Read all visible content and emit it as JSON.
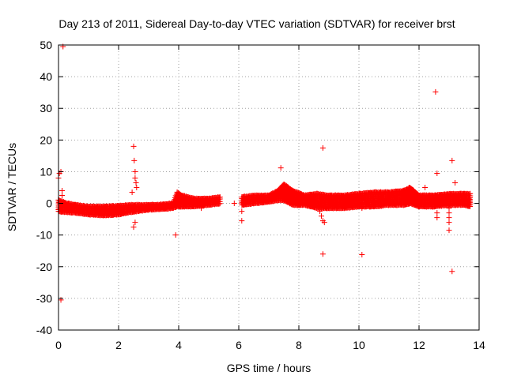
{
  "chart_data": {
    "type": "scatter",
    "title": "Day 213 of 2011, Sidereal Day-to-day VTEC variation (SDTVAR) for receiver brst",
    "xlabel": "GPS time / hours",
    "ylabel": "SDTVAR / TECUs",
    "xlim": [
      0,
      14
    ],
    "ylim": [
      -40,
      50
    ],
    "xticks": [
      0,
      2,
      4,
      6,
      8,
      10,
      12,
      14
    ],
    "yticks": [
      -40,
      -30,
      -20,
      -10,
      0,
      10,
      20,
      30,
      40,
      50
    ],
    "grid": true,
    "marker": "+",
    "color": "#ff0000",
    "band": {
      "description": "dense cluster of points",
      "x": [
        0.0,
        0.3,
        0.6,
        1.0,
        1.5,
        2.0,
        2.4,
        2.6,
        3.0,
        3.5,
        3.8,
        3.95,
        4.1,
        4.5,
        5.0,
        5.4,
        6.1,
        6.5,
        7.0,
        7.3,
        7.5,
        7.8,
        8.2,
        8.6,
        9.0,
        9.5,
        10.0,
        10.5,
        11.0,
        11.5,
        11.7,
        12.0,
        12.5,
        13.0,
        13.5,
        13.7
      ],
      "upper": [
        1.0,
        0.0,
        -0.5,
        -1.0,
        -1.0,
        -0.8,
        -0.5,
        -0.5,
        -0.5,
        -0.3,
        0.0,
        3.5,
        2.5,
        1.5,
        1.5,
        2.0,
        2.0,
        2.5,
        2.5,
        4.0,
        6.0,
        4.0,
        2.5,
        3.0,
        2.5,
        2.5,
        3.0,
        3.5,
        3.5,
        4.0,
        5.0,
        2.5,
        2.5,
        3.0,
        3.0,
        3.0
      ],
      "lower": [
        -2.5,
        -2.8,
        -3.0,
        -3.5,
        -3.8,
        -3.5,
        -2.8,
        -2.5,
        -2.0,
        -1.8,
        -1.5,
        -1.0,
        -1.0,
        -1.0,
        -0.5,
        0.0,
        -0.5,
        0.0,
        0.5,
        1.0,
        1.0,
        -0.5,
        -0.5,
        -1.5,
        -1.5,
        -1.5,
        -1.0,
        -1.0,
        -0.5,
        -0.5,
        0.0,
        -1.0,
        -1.0,
        -0.5,
        -0.5,
        -1.0
      ]
    },
    "gap": [
      5.4,
      6.1
    ],
    "points": [
      {
        "x": 0.15,
        "y": 49.5
      },
      {
        "x": 0.03,
        "y": 9.5
      },
      {
        "x": 0.08,
        "y": 10.0
      },
      {
        "x": 0.0,
        "y": 8.0
      },
      {
        "x": 0.12,
        "y": 4.0
      },
      {
        "x": 0.12,
        "y": 2.5
      },
      {
        "x": 0.08,
        "y": -30.5
      },
      {
        "x": 2.5,
        "y": 18.0
      },
      {
        "x": 2.52,
        "y": 13.5
      },
      {
        "x": 2.55,
        "y": 10.0
      },
      {
        "x": 2.55,
        "y": 8.0
      },
      {
        "x": 2.58,
        "y": 6.5
      },
      {
        "x": 2.6,
        "y": 5.0
      },
      {
        "x": 2.45,
        "y": 3.5
      },
      {
        "x": 2.55,
        "y": -6.0
      },
      {
        "x": 2.5,
        "y": -7.5
      },
      {
        "x": 3.9,
        "y": -10.0
      },
      {
        "x": 4.0,
        "y": 1.0
      },
      {
        "x": 4.75,
        "y": -1.5
      },
      {
        "x": 5.85,
        "y": 0.0
      },
      {
        "x": 6.1,
        "y": -2.5
      },
      {
        "x": 6.1,
        "y": -5.5
      },
      {
        "x": 7.4,
        "y": 11.2
      },
      {
        "x": 8.8,
        "y": 17.5
      },
      {
        "x": 8.7,
        "y": -2.5
      },
      {
        "x": 8.75,
        "y": -4.0
      },
      {
        "x": 8.8,
        "y": -5.5
      },
      {
        "x": 8.85,
        "y": -6.0
      },
      {
        "x": 8.8,
        "y": -16.0
      },
      {
        "x": 10.1,
        "y": -16.2
      },
      {
        "x": 10.1,
        "y": -1.5
      },
      {
        "x": 12.2,
        "y": 5.0
      },
      {
        "x": 12.55,
        "y": 35.2
      },
      {
        "x": 12.6,
        "y": 9.5
      },
      {
        "x": 12.6,
        "y": -3.0
      },
      {
        "x": 12.6,
        "y": -4.5
      },
      {
        "x": 13.0,
        "y": -1.5
      },
      {
        "x": 13.0,
        "y": -3.0
      },
      {
        "x": 13.0,
        "y": -4.5
      },
      {
        "x": 13.0,
        "y": -6.0
      },
      {
        "x": 13.0,
        "y": -8.5
      },
      {
        "x": 13.1,
        "y": 13.5
      },
      {
        "x": 13.2,
        "y": 6.5
      },
      {
        "x": 13.1,
        "y": -21.5
      }
    ]
  }
}
